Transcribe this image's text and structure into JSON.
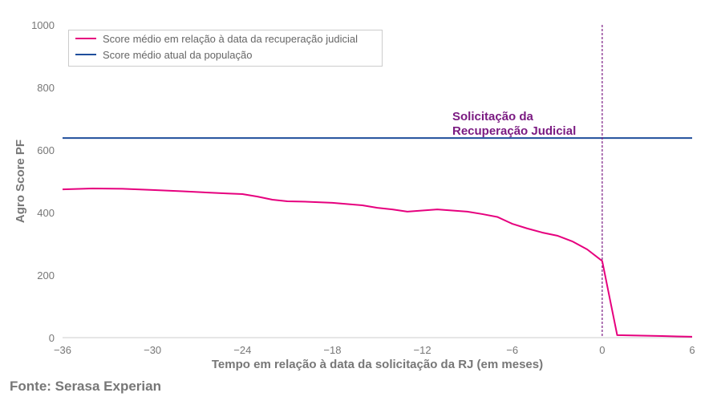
{
  "chart_data": {
    "type": "line",
    "title": "",
    "xlabel": "Tempo em relação à data da solicitação da RJ (em meses)",
    "ylabel": "Agro Score PF",
    "xlim": [
      -36,
      6
    ],
    "ylim": [
      0,
      1000
    ],
    "x_ticks": [
      "−36",
      "−30",
      "−24",
      "−18",
      "−12",
      "−6",
      "0",
      "6"
    ],
    "x_tick_values": [
      -36,
      -30,
      -24,
      -18,
      -12,
      -6,
      0,
      6
    ],
    "y_ticks": [
      "0",
      "200",
      "400",
      "600",
      "800",
      "1000"
    ],
    "y_tick_values": [
      0,
      200,
      400,
      600,
      800,
      1000
    ],
    "grid": false,
    "legend_position": "top-left",
    "series": [
      {
        "name": "Score médio em relação à data da recuperação judicial",
        "color": "#e6007e",
        "x": [
          -36,
          -34,
          -32,
          -30,
          -28,
          -26,
          -25,
          -24,
          -23,
          -22,
          -21,
          -20,
          -18,
          -16,
          -15,
          -14,
          -13,
          -11,
          -9,
          -8,
          -7,
          -6,
          -5,
          -4,
          -3,
          -2,
          -1,
          0,
          1,
          2,
          3,
          4,
          5,
          6
        ],
        "y": [
          474,
          477,
          476,
          472,
          468,
          463,
          461,
          459,
          451,
          441,
          436,
          435,
          431,
          423,
          415,
          410,
          403,
          410,
          403,
          395,
          386,
          364,
          349,
          336,
          326,
          308,
          282,
          245,
          8,
          7,
          6,
          5,
          4,
          3
        ]
      },
      {
        "name": "Score médio atual da população",
        "color": "#1f4e9c",
        "constant": 638
      }
    ],
    "annotations": [
      {
        "text_lines": [
          "Solicitação da",
          "Recuperação Judicial"
        ],
        "x": 0,
        "color": "#7b1b82"
      }
    ]
  },
  "source": "Fonte: Serasa Experian"
}
